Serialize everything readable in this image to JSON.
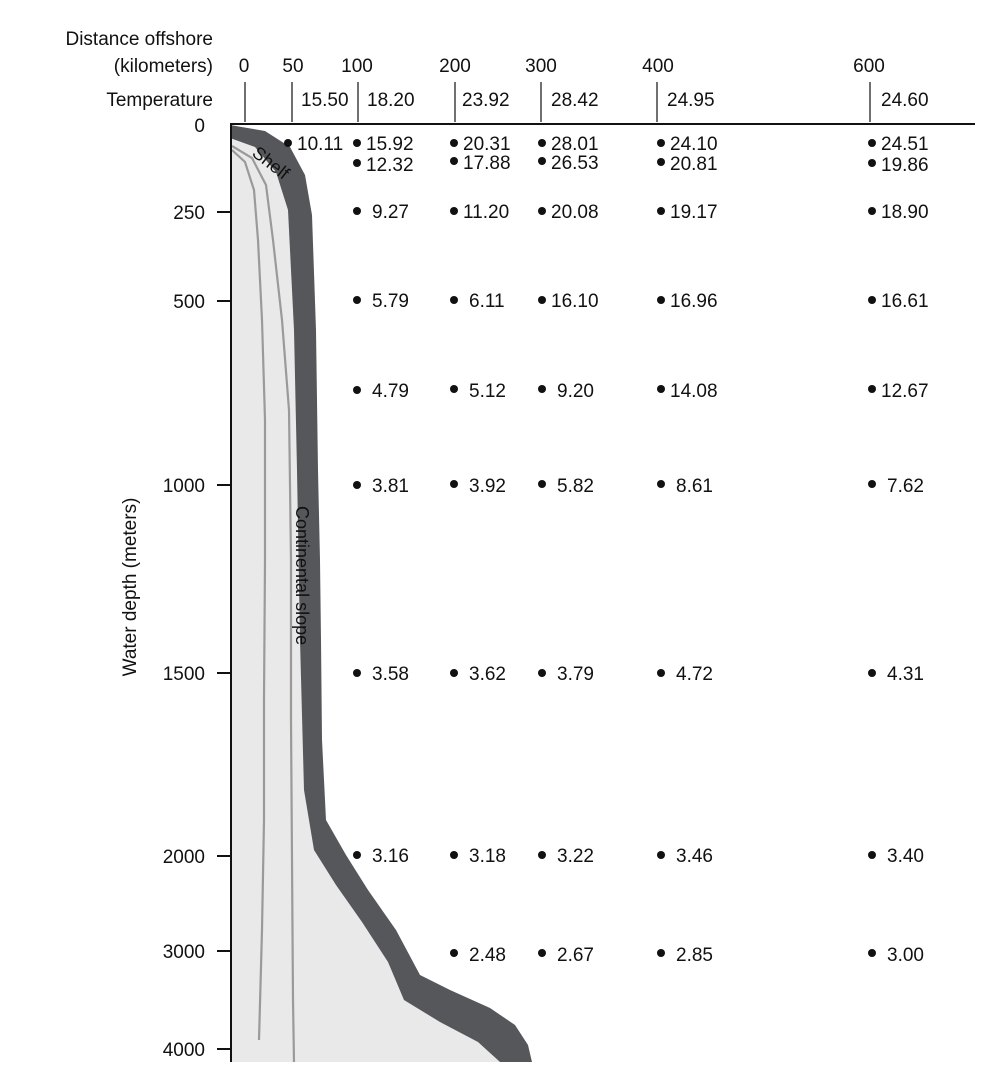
{
  "header": {
    "distance_line1": "Distance offshore",
    "distance_line2": "(kilometers)",
    "temperature_label": "Temperature"
  },
  "distance_ticks": [
    "0",
    "50",
    "100",
    "200",
    "300",
    "400",
    "600"
  ],
  "surface_temps": [
    "15.50",
    "18.20",
    "23.92",
    "28.42",
    "24.95",
    "24.60"
  ],
  "y_axis": {
    "label": "Water depth (meters)",
    "ticks": [
      "0",
      "250",
      "500",
      "1000",
      "1500",
      "2000",
      "3000",
      "4000"
    ]
  },
  "region_labels": {
    "shelf": "Shelf",
    "slope": "Continental slope"
  },
  "colors": {
    "sediment": "#55575b",
    "rock": "#e9e9e9",
    "strata": "#9a9a9a",
    "ink": "#111111"
  },
  "stations": [
    {
      "distance": "50",
      "readings": [
        "10.11"
      ]
    },
    {
      "distance": "100",
      "readings": [
        "15.92",
        "12.32",
        "9.27",
        "5.79",
        "4.79",
        "3.81",
        "3.58",
        "3.16"
      ]
    },
    {
      "distance": "200",
      "readings": [
        "20.31",
        "17.88",
        "11.20",
        "6.11",
        "5.12",
        "3.92",
        "3.62",
        "3.18",
        "2.48"
      ]
    },
    {
      "distance": "300",
      "readings": [
        "28.01",
        "26.53",
        "20.08",
        "16.10",
        "9.20",
        "5.82",
        "3.79",
        "3.22",
        "2.67"
      ]
    },
    {
      "distance": "400",
      "readings": [
        "24.10",
        "20.81",
        "19.17",
        "16.96",
        "14.08",
        "8.61",
        "4.72",
        "3.46",
        "2.85"
      ]
    },
    {
      "distance": "600",
      "readings": [
        "24.51",
        "19.86",
        "18.90",
        "16.61",
        "12.67",
        "7.62",
        "4.31",
        "3.40",
        "3.00"
      ]
    }
  ]
}
